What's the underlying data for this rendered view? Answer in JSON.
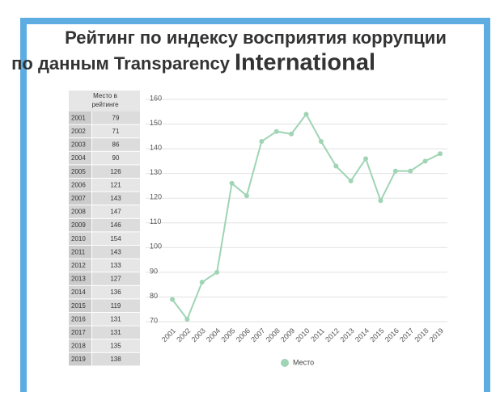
{
  "chart_data": {
    "type": "line",
    "title": [
      "Рейтинг по индексу восприятия коррупции",
      "по данным Transparency",
      "International"
    ],
    "table_header": "Место в рейтинге",
    "categories": [
      "2001",
      "2002",
      "2003",
      "2004",
      "2005",
      "2006",
      "2007",
      "2008",
      "2009",
      "2010",
      "2011",
      "2012",
      "2013",
      "2014",
      "2015",
      "2016",
      "2017",
      "2018",
      "2019"
    ],
    "series": [
      {
        "name": "Место",
        "color": "#9fd4b4",
        "values": [
          79,
          71,
          86,
          90,
          126,
          121,
          143,
          147,
          146,
          154,
          143,
          133,
          127,
          136,
          119,
          131,
          131,
          135,
          138
        ]
      }
    ],
    "ylim": [
      70,
      160
    ],
    "yticks": [
      70,
      80,
      90,
      100,
      110,
      120,
      130,
      140,
      150,
      160
    ],
    "grid": true,
    "legend": "bottom"
  }
}
